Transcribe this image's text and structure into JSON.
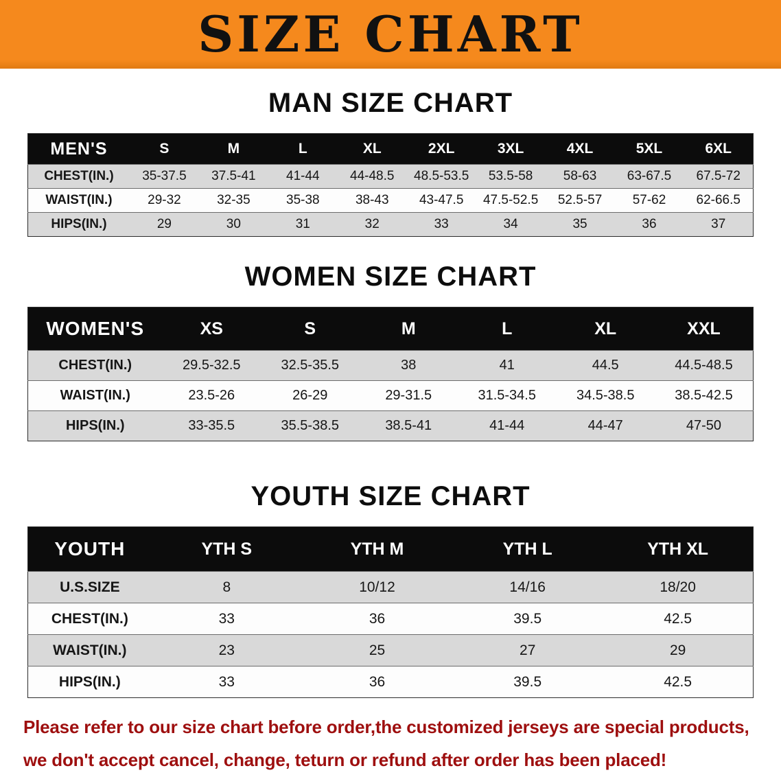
{
  "banner": {
    "title": "SIZE CHART"
  },
  "sections": [
    {
      "id": "men",
      "heading": "MAN SIZE CHART",
      "table": {
        "header": [
          "MEN'S",
          "S",
          "M",
          "L",
          "XL",
          "2XL",
          "3XL",
          "4XL",
          "5XL",
          "6XL"
        ],
        "rows": [
          [
            "CHEST(IN.)",
            "35-37.5",
            "37.5-41",
            "41-44",
            "44-48.5",
            "48.5-53.5",
            "53.5-58",
            "58-63",
            "63-67.5",
            "67.5-72"
          ],
          [
            "WAIST(IN.)",
            "29-32",
            "32-35",
            "35-38",
            "38-43",
            "43-47.5",
            "47.5-52.5",
            "52.5-57",
            "57-62",
            "62-66.5"
          ],
          [
            "HIPS(IN.)",
            "29",
            "30",
            "31",
            "32",
            "33",
            "34",
            "35",
            "36",
            "37"
          ]
        ]
      }
    },
    {
      "id": "women",
      "heading": "WOMEN SIZE CHART",
      "table": {
        "header": [
          "WOMEN'S",
          "XS",
          "S",
          "M",
          "L",
          "XL",
          "XXL"
        ],
        "rows": [
          [
            "CHEST(IN.)",
            "29.5-32.5",
            "32.5-35.5",
            "38",
            "41",
            "44.5",
            "44.5-48.5"
          ],
          [
            "WAIST(IN.)",
            "23.5-26",
            "26-29",
            "29-31.5",
            "31.5-34.5",
            "34.5-38.5",
            "38.5-42.5"
          ],
          [
            "HIPS(IN.)",
            "33-35.5",
            "35.5-38.5",
            "38.5-41",
            "41-44",
            "44-47",
            "47-50"
          ]
        ]
      }
    },
    {
      "id": "youth",
      "heading": "YOUTH SIZE CHART",
      "table": {
        "header": [
          "YOUTH",
          "YTH S",
          "YTH M",
          "YTH L",
          "YTH XL"
        ],
        "rows": [
          [
            "U.S.SIZE",
            "8",
            "10/12",
            "14/16",
            "18/20"
          ],
          [
            "CHEST(IN.)",
            "33",
            "36",
            "39.5",
            "42.5"
          ],
          [
            "WAIST(IN.)",
            "23",
            "25",
            "27",
            "29"
          ],
          [
            "HIPS(IN.)",
            "33",
            "36",
            "39.5",
            "42.5"
          ]
        ]
      }
    }
  ],
  "footer": {
    "line1": "Please refer to our size chart before order,the customized jerseys are special products,",
    "line2": "we don't accept cancel, change, teturn or refund after order has been placed!"
  },
  "colors": {
    "banner_bg": "#f5891d",
    "header_bar": "#0c0c0c",
    "row_stripe": "#d9d9d9",
    "notice_text": "#9e0f0f"
  }
}
